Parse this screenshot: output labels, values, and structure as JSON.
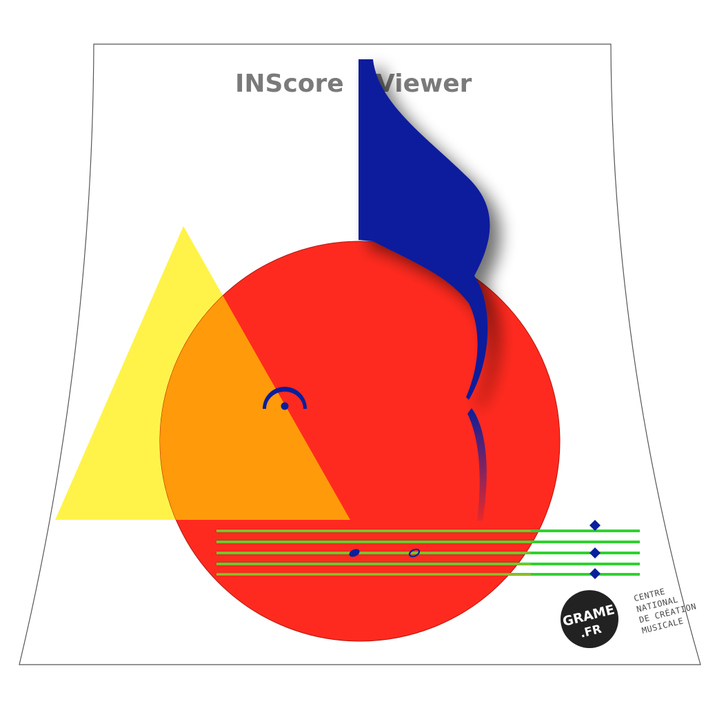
{
  "app": {
    "title_left": "INScore",
    "title_right": "Viewer"
  },
  "logo": {
    "brand_line1": "GRAME",
    "brand_line2": ".FR",
    "org_lines": [
      "CENTRE",
      "NATIONAL",
      "DE CRÉATION",
      "MUSICALE"
    ]
  },
  "colors": {
    "background": "#ffffff",
    "title": "#7a7a7a",
    "triangle": "#fff23a",
    "circle": "#ff2a1f",
    "overlap": "#ff9a0a",
    "note": "#0a1f9c",
    "staff_line": "#2fd12f",
    "staff_inner": "#b7b92a",
    "logo_bg": "#222222",
    "org_text": "#4a4a4a",
    "page_border": "#555555"
  },
  "icons": {
    "note": "sixteenth-note-icon",
    "fermata": "fermata-icon",
    "staff": "music-staff-icon"
  }
}
